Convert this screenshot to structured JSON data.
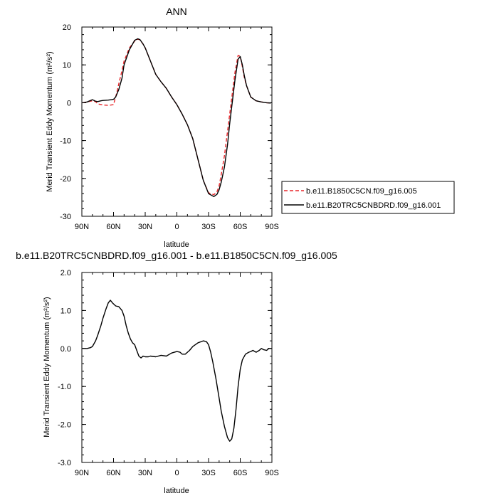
{
  "chart_data": [
    {
      "type": "line",
      "title": "ANN",
      "xlabel": "latitude",
      "ylabel": "Merid Transient Eddy Momentum (m²/s²)",
      "xlim": [
        90,
        -90
      ],
      "ylim": [
        -30,
        20
      ],
      "x_ticks": [
        90,
        60,
        30,
        0,
        -30,
        -60,
        -90
      ],
      "x_tick_labels": [
        "90N",
        "60N",
        "30N",
        "0",
        "30S",
        "60S",
        "90S"
      ],
      "y_ticks": [
        20,
        10,
        0,
        -10,
        -20,
        -30
      ],
      "y_tick_labels": [
        "20",
        "10",
        "0",
        "-10",
        "-20",
        "-30"
      ],
      "legend_position": "right",
      "series": [
        {
          "name": "b.e11.B1850C5CN.f09_g16.005",
          "color": "#e8262a",
          "dash": true,
          "x": [
            89,
            85,
            80,
            77,
            75,
            70,
            65,
            60,
            57,
            55,
            52,
            50,
            45,
            40,
            37,
            35,
            32,
            30,
            25,
            20,
            15,
            10,
            5,
            0,
            -5,
            -10,
            -15,
            -20,
            -25,
            -30,
            -35,
            -38,
            -40,
            -42,
            -45,
            -48,
            -50,
            -55,
            -58,
            -60,
            -62,
            -64,
            -66,
            -70,
            -75,
            -80,
            -85,
            -89
          ],
          "y": [
            0,
            0.2,
            0.5,
            0.3,
            -0.3,
            -0.6,
            -0.7,
            -0.5,
            2.5,
            5,
            8.5,
            11,
            14.5,
            16.3,
            16.8,
            16.6,
            15.5,
            14.5,
            11,
            7.5,
            5.5,
            3.8,
            1.5,
            -0.5,
            -3,
            -5.8,
            -9.5,
            -15,
            -20.5,
            -23.8,
            -24.3,
            -23.5,
            -22,
            -19,
            -14,
            -7.5,
            -3,
            8,
            12.5,
            12.3,
            9.5,
            6.5,
            4.5,
            1.5,
            0.5,
            0.2,
            0,
            -0.1
          ]
        },
        {
          "name": "b.e11.B20TRC5CNBDRD.f09_g16.001",
          "color": "#000000",
          "dash": false,
          "x": [
            89,
            85,
            80,
            77,
            75,
            72,
            70,
            65,
            62,
            60,
            58,
            55,
            52,
            50,
            45,
            40,
            37,
            35,
            32,
            30,
            25,
            20,
            15,
            10,
            5,
            0,
            -5,
            -10,
            -15,
            -20,
            -25,
            -30,
            -35,
            -38,
            -40,
            -42,
            -45,
            -48,
            -50,
            -55,
            -58,
            -60,
            -62,
            -64,
            -66,
            -70,
            -75,
            -80,
            -85,
            -89
          ],
          "y": [
            0,
            0.2,
            0.8,
            0.4,
            0.3,
            0.5,
            0.6,
            0.7,
            0.8,
            0.9,
            1.5,
            3.5,
            6.5,
            10,
            14,
            16.5,
            16.9,
            16.7,
            15.5,
            14.5,
            11,
            7.5,
            5.5,
            3.8,
            1.5,
            -0.5,
            -3,
            -5.8,
            -9.5,
            -15,
            -20.5,
            -24,
            -24.8,
            -24.2,
            -23,
            -21,
            -17,
            -11,
            -5.5,
            6,
            11.5,
            12.2,
            10,
            7,
            4.5,
            1.5,
            0.5,
            0.2,
            0,
            -0.1
          ]
        }
      ]
    },
    {
      "type": "line",
      "title": "b.e11.B20TRC5CNBDRD.f09_g16.001 - b.e11.B1850C5CN.f09_g16.005",
      "xlabel": "latitude",
      "ylabel": "Merid Transient Eddy Momentum (m²/s²)",
      "xlim": [
        90,
        -90
      ],
      "ylim": [
        -3.0,
        2.0
      ],
      "x_ticks": [
        90,
        60,
        30,
        0,
        -30,
        -60,
        -90
      ],
      "x_tick_labels": [
        "90N",
        "60N",
        "30N",
        "0",
        "30S",
        "60S",
        "90S"
      ],
      "y_ticks": [
        2.0,
        1.0,
        0.0,
        -1.0,
        -2.0,
        -3.0
      ],
      "y_tick_labels": [
        "2.0",
        "1.0",
        "0.0",
        "-1.0",
        "-2.0",
        "-3.0"
      ],
      "series": [
        {
          "color": "#000000",
          "x": [
            89,
            85,
            82,
            80,
            77,
            75,
            72,
            70,
            67,
            65,
            63,
            61,
            58,
            55,
            52,
            50,
            48,
            46,
            44,
            42,
            40,
            38,
            36,
            34,
            32,
            30,
            27,
            25,
            20,
            15,
            10,
            5,
            0,
            -3,
            -5,
            -8,
            -10,
            -12,
            -15,
            -20,
            -25,
            -28,
            -30,
            -32,
            -34,
            -37,
            -40,
            -42,
            -45,
            -48,
            -50,
            -52,
            -54,
            -56,
            -58,
            -60,
            -62,
            -65,
            -68,
            -70,
            -72,
            -75,
            -78,
            -80,
            -82,
            -85,
            -87,
            -89
          ],
          "y": [
            0,
            0,
            0.02,
            0.05,
            0.2,
            0.35,
            0.6,
            0.8,
            1.05,
            1.2,
            1.27,
            1.2,
            1.12,
            1.1,
            1.0,
            0.85,
            0.6,
            0.4,
            0.25,
            0.15,
            0.1,
            -0.05,
            -0.2,
            -0.25,
            -0.2,
            -0.22,
            -0.22,
            -0.2,
            -0.22,
            -0.18,
            -0.2,
            -0.12,
            -0.08,
            -0.1,
            -0.15,
            -0.15,
            -0.1,
            -0.05,
            0.05,
            0.15,
            0.2,
            0.18,
            0.1,
            -0.1,
            -0.35,
            -0.8,
            -1.3,
            -1.65,
            -2.05,
            -2.35,
            -2.44,
            -2.38,
            -2.1,
            -1.6,
            -1.0,
            -0.55,
            -0.3,
            -0.15,
            -0.1,
            -0.08,
            -0.05,
            -0.1,
            -0.05,
            0.0,
            -0.03,
            -0.05,
            0.0,
            0.0
          ]
        }
      ]
    }
  ]
}
